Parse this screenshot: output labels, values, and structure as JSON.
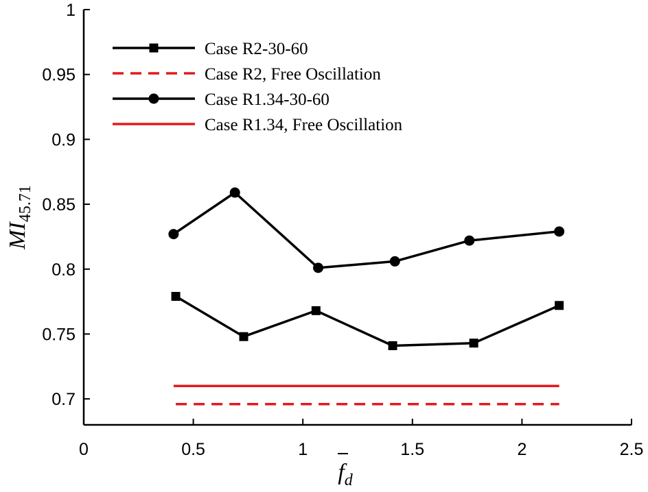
{
  "chart_data": {
    "type": "line",
    "xlabel": {
      "base": "f",
      "bar": true,
      "sub": "d"
    },
    "ylabel": {
      "base": "MI",
      "sub": "45.71"
    },
    "xlim": [
      0,
      2.5
    ],
    "ylim": [
      0.68,
      1.0
    ],
    "xticks": [
      0,
      0.5,
      1,
      1.5,
      2,
      2.5
    ],
    "xtick_labels": [
      "0",
      "0.5",
      "1",
      "1.5",
      "2",
      "2.5"
    ],
    "yticks": [
      0.7,
      0.75,
      0.8,
      0.85,
      0.9,
      0.95,
      1.0
    ],
    "ytick_labels": [
      "0.7",
      "0.75",
      "0.8",
      "0.85",
      "0.9",
      "0.95",
      "1"
    ],
    "grid": false,
    "legend_position": "top-left",
    "series": [
      {
        "name": "Case R2-30-60",
        "color": "#000000",
        "style": "solid",
        "marker": "square",
        "x": [
          0.42,
          0.73,
          1.06,
          1.41,
          1.78,
          2.17
        ],
        "y": [
          0.779,
          0.748,
          0.768,
          0.741,
          0.743,
          0.772
        ]
      },
      {
        "name": "Case R2, Free Oscillation",
        "color": "#e31a1c",
        "style": "dashed",
        "marker": "none",
        "x": [
          0.42,
          2.17
        ],
        "y": [
          0.696,
          0.696
        ]
      },
      {
        "name": "Case R1.34-30-60",
        "color": "#000000",
        "style": "solid",
        "marker": "circle",
        "x": [
          0.41,
          0.69,
          1.07,
          1.42,
          1.76,
          2.17
        ],
        "y": [
          0.827,
          0.859,
          0.801,
          0.806,
          0.822,
          0.829
        ]
      },
      {
        "name": "Case R1.34, Free Oscillation",
        "color": "#e31a1c",
        "style": "solid",
        "marker": "none",
        "x": [
          0.41,
          2.17
        ],
        "y": [
          0.71,
          0.71
        ]
      }
    ]
  }
}
